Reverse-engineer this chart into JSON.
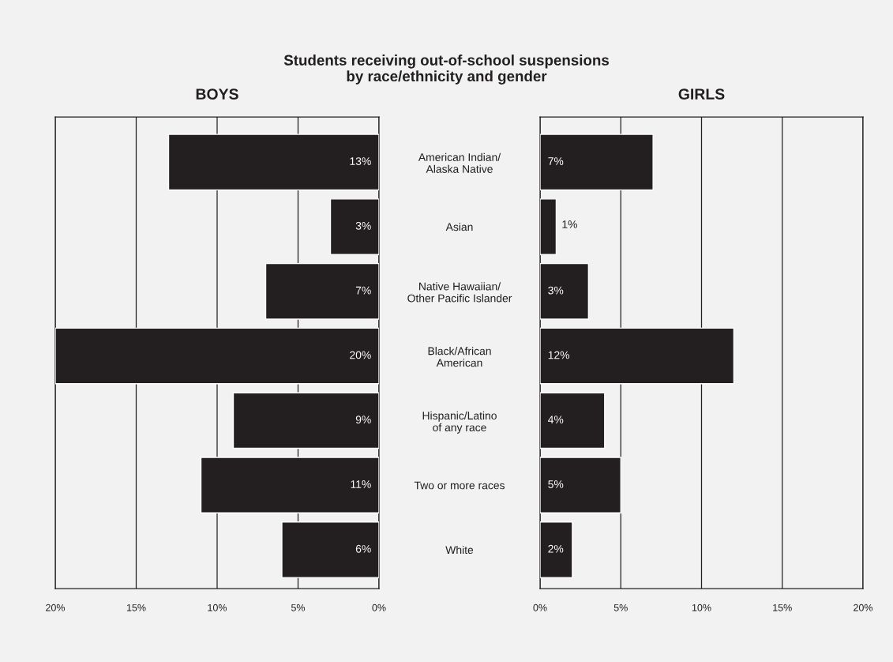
{
  "chart_data": [
    {
      "type": "bar",
      "orientation": "horizontal",
      "title": "Students receiving out-of-school suspensions\nby race/ethnicity and gender",
      "subtitle": "BOYS",
      "categories": [
        "American Indian/\nAlaska Native",
        "Asian",
        "Native Hawaiian/\nOther Pacific Islander",
        "Black/African\nAmerican",
        "Hispanic/Latino\nof any race",
        "Two or more races",
        "White"
      ],
      "values": [
        13,
        3,
        7,
        20,
        9,
        11,
        6
      ],
      "color": "#231f20",
      "value_labels": [
        "13%",
        "3%",
        "7%",
        "20%",
        "9%",
        "11%",
        "6%"
      ],
      "xlim": [
        20,
        0
      ],
      "xticks": [
        {
          "value": 20,
          "label": "20%"
        },
        {
          "value": 15,
          "label": "15%"
        },
        {
          "value": 10,
          "label": "10%"
        },
        {
          "value": 5,
          "label": "5%"
        },
        {
          "value": 0,
          "label": "0%"
        }
      ],
      "grid": "x",
      "legend": false
    },
    {
      "type": "bar",
      "orientation": "horizontal",
      "title": "GIRLS",
      "categories": [
        null,
        null,
        null,
        null,
        null,
        null,
        null
      ],
      "values": [
        7,
        1,
        3,
        12,
        4,
        5,
        2
      ],
      "color": "#231f20",
      "value_labels": [
        "7%",
        "1%",
        "3%",
        "12%",
        "4%",
        "5%",
        "2%"
      ],
      "xlim": [
        0,
        20
      ],
      "xticks": [
        {
          "value": 0,
          "label": "0%"
        },
        {
          "value": 5,
          "label": "5%"
        },
        {
          "value": 10,
          "label": "10%"
        },
        {
          "value": 15,
          "label": "15%"
        },
        {
          "value": 20,
          "label": "20%"
        }
      ],
      "grid": "x",
      "legend": false,
      "tick_labels": "x"
    }
  ]
}
